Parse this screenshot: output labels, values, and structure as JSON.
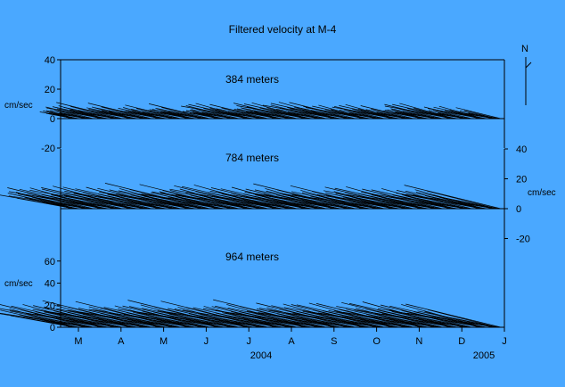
{
  "colors": {
    "background": "#4aa8ff",
    "ink": "#000000"
  },
  "chart_data": {
    "type": "line",
    "title": "Filtered velocity at M-4",
    "north_label": "N",
    "x_months": [
      "M",
      "A",
      "M",
      "J",
      "J",
      "A",
      "S",
      "O",
      "N",
      "D",
      "J"
    ],
    "x_years": [
      "2004",
      "2005"
    ],
    "y_unit": "cm/sec",
    "panels": [
      {
        "name": "384 meters",
        "ylim": [
          -40,
          40
        ],
        "yticks": [
          40,
          20,
          0,
          -20
        ],
        "tick_side": "left",
        "arrow_magnitudes": [
          14,
          18,
          22,
          25,
          20,
          24,
          19,
          21,
          17,
          23,
          15,
          20,
          26,
          22,
          18,
          24,
          27,
          21,
          28,
          25,
          23,
          19,
          24,
          20,
          16,
          22,
          26,
          18,
          21,
          17
        ]
      },
      {
        "name": "784 meters",
        "ylim": [
          -40,
          40
        ],
        "yticks": [
          40,
          20,
          0,
          -20
        ],
        "tick_side": "right",
        "arrow_magnitudes": [
          28,
          32,
          35,
          30,
          38,
          33,
          36,
          31,
          34,
          39,
          29,
          37,
          33,
          35,
          40,
          32,
          36,
          30,
          34,
          38,
          31,
          35,
          29,
          33,
          37,
          30,
          34,
          28,
          32,
          36
        ]
      },
      {
        "name": "964 meters",
        "ylim": [
          0,
          80
        ],
        "yticks": [
          60,
          40,
          20,
          0
        ],
        "tick_side": "left",
        "arrow_magnitudes": [
          42,
          48,
          52,
          45,
          50,
          55,
          47,
          53,
          49,
          44,
          51,
          56,
          46,
          54,
          48,
          43,
          52,
          57,
          45,
          50,
          53,
          47,
          55,
          49,
          44,
          51,
          58,
          46,
          52,
          48
        ]
      }
    ]
  }
}
